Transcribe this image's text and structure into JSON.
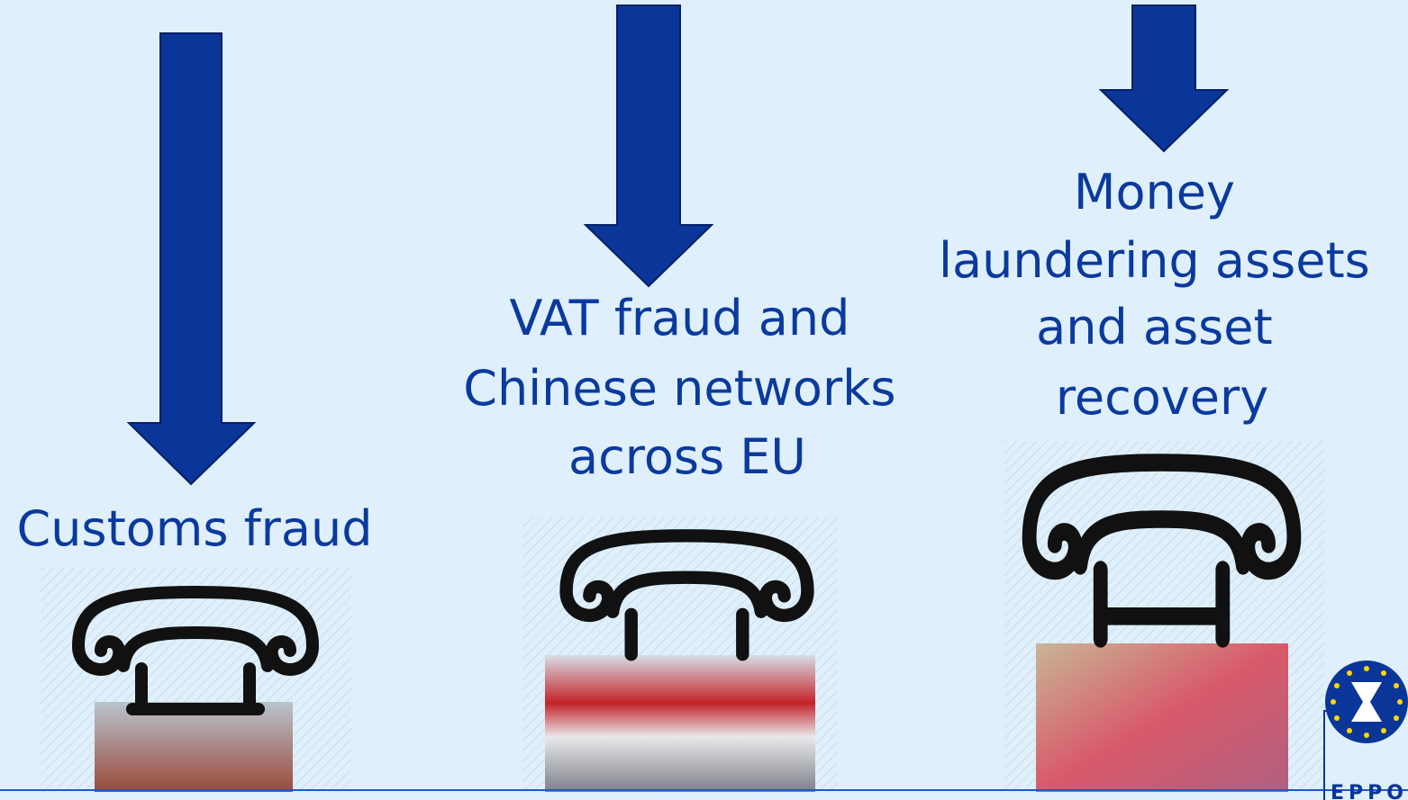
{
  "pillars": [
    {
      "label_lines": [
        "Customs fraud"
      ]
    },
    {
      "label_lines": [
        "VAT fraud and",
        "Chinese networks",
        "across EU"
      ]
    },
    {
      "label_lines": [
        "Money",
        "laundering assets",
        "and asset",
        "recovery"
      ]
    }
  ],
  "logo": {
    "text": "EPPO"
  }
}
